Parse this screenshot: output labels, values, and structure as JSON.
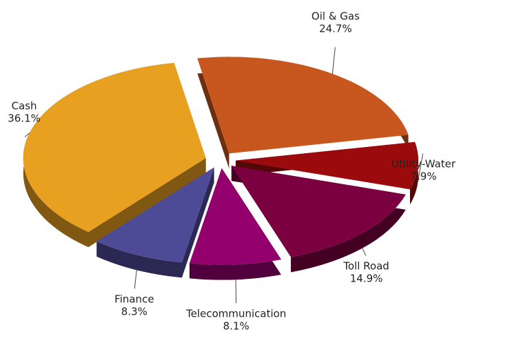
{
  "chart_data": {
    "type": "pie",
    "categories": [
      "Oil & Gas",
      "Utility-Water",
      "Toll Road",
      "Telecommunication",
      "Finance",
      "Cash"
    ],
    "values": [
      24.7,
      7.9,
      14.9,
      8.1,
      8.3,
      36.1
    ],
    "value_labels": [
      "24.7%",
      "7.9%",
      "14.9%",
      "8.1%",
      "8.3%",
      "36.1%"
    ],
    "colors": [
      "#c8561f",
      "#9b0a0c",
      "#7a0040",
      "#93006e",
      "#4e4b96",
      "#e8a020"
    ]
  }
}
